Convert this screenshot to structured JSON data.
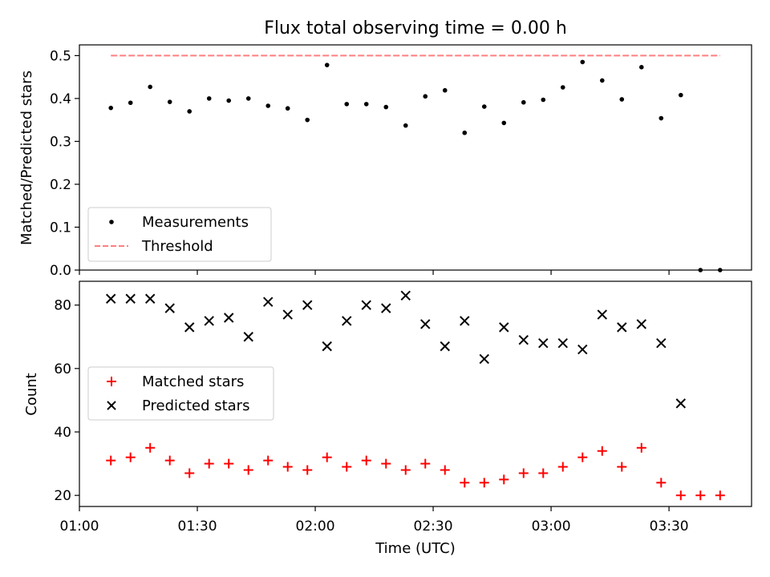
{
  "chart_data": [
    {
      "type": "scatter",
      "title": "Flux total observing time = 0.00 h",
      "xlabel": "",
      "ylabel": "Matched/Predicted stars",
      "ylim": [
        0,
        0.525
      ],
      "yticks": [
        "0.0",
        "0.1",
        "0.2",
        "0.3",
        "0.4",
        "0.5"
      ],
      "xticks": [
        "01:00",
        "01:30",
        "02:00",
        "02:30",
        "03:00",
        "03:30"
      ],
      "xlim": [
        "01:00",
        "03:51"
      ],
      "legend": "lower-left",
      "series": [
        {
          "name": "Measurements",
          "marker": "dot",
          "color": "#000000",
          "x": [
            "01:08",
            "01:13",
            "01:18",
            "01:23",
            "01:28",
            "01:33",
            "01:38",
            "01:43",
            "01:48",
            "01:53",
            "01:58",
            "02:03",
            "02:08",
            "02:13",
            "02:18",
            "02:23",
            "02:28",
            "02:33",
            "02:38",
            "02:43",
            "02:48",
            "02:53",
            "02:58",
            "03:03",
            "03:08",
            "03:13",
            "03:18",
            "03:23",
            "03:28",
            "03:33",
            "03:38",
            "03:43"
          ],
          "values": [
            0.378,
            0.39,
            0.427,
            0.392,
            0.37,
            0.4,
            0.395,
            0.4,
            0.383,
            0.377,
            0.35,
            0.478,
            0.387,
            0.387,
            0.38,
            0.337,
            0.405,
            0.419,
            0.32,
            0.381,
            0.343,
            0.391,
            0.397,
            0.426,
            0.485,
            0.442,
            0.398,
            0.473,
            0.354,
            0.408,
            0.0,
            0.0
          ]
        },
        {
          "name": "Threshold",
          "style": "dashed",
          "color": "#ff7f7f",
          "x": [
            "01:08",
            "03:43"
          ],
          "values": [
            0.5,
            0.5
          ]
        }
      ]
    },
    {
      "type": "scatter",
      "title": "",
      "xlabel": "Time (UTC)",
      "ylabel": "Count",
      "ylim": [
        16.5,
        87.5
      ],
      "yticks": [
        "20",
        "40",
        "60",
        "80"
      ],
      "xticks": [
        "01:00",
        "01:30",
        "02:00",
        "02:30",
        "03:00",
        "03:30"
      ],
      "xlim": [
        "01:00",
        "03:51"
      ],
      "legend": "center-left",
      "series": [
        {
          "name": "Matched stars",
          "marker": "plus",
          "color": "#ff0000",
          "x": [
            "01:08",
            "01:13",
            "01:18",
            "01:23",
            "01:28",
            "01:33",
            "01:38",
            "01:43",
            "01:48",
            "01:53",
            "01:58",
            "02:03",
            "02:08",
            "02:13",
            "02:18",
            "02:23",
            "02:28",
            "02:33",
            "02:38",
            "02:43",
            "02:48",
            "02:53",
            "02:58",
            "03:03",
            "03:08",
            "03:13",
            "03:18",
            "03:23",
            "03:28",
            "03:33",
            "03:38",
            "03:43"
          ],
          "values": [
            31,
            32,
            35,
            31,
            27,
            30,
            30,
            28,
            31,
            29,
            28,
            32,
            29,
            31,
            30,
            28,
            30,
            28,
            24,
            24,
            25,
            27,
            27,
            29,
            32,
            34,
            29,
            35,
            24,
            20,
            20,
            20
          ]
        },
        {
          "name": "Predicted stars",
          "marker": "x",
          "color": "#000000",
          "x": [
            "01:08",
            "01:13",
            "01:18",
            "01:23",
            "01:28",
            "01:33",
            "01:38",
            "01:43",
            "01:48",
            "01:53",
            "01:58",
            "02:03",
            "02:08",
            "02:13",
            "02:18",
            "02:23",
            "02:28",
            "02:33",
            "02:38",
            "02:43",
            "02:48",
            "02:53",
            "02:58",
            "03:03",
            "03:08",
            "03:13",
            "03:18",
            "03:23",
            "03:28",
            "03:33"
          ],
          "values": [
            82,
            82,
            82,
            79,
            73,
            75,
            76,
            70,
            81,
            77,
            80,
            67,
            75,
            80,
            79,
            83,
            74,
            67,
            75,
            63,
            73,
            69,
            68,
            68,
            66,
            77,
            73,
            74,
            68,
            49
          ]
        }
      ]
    }
  ]
}
